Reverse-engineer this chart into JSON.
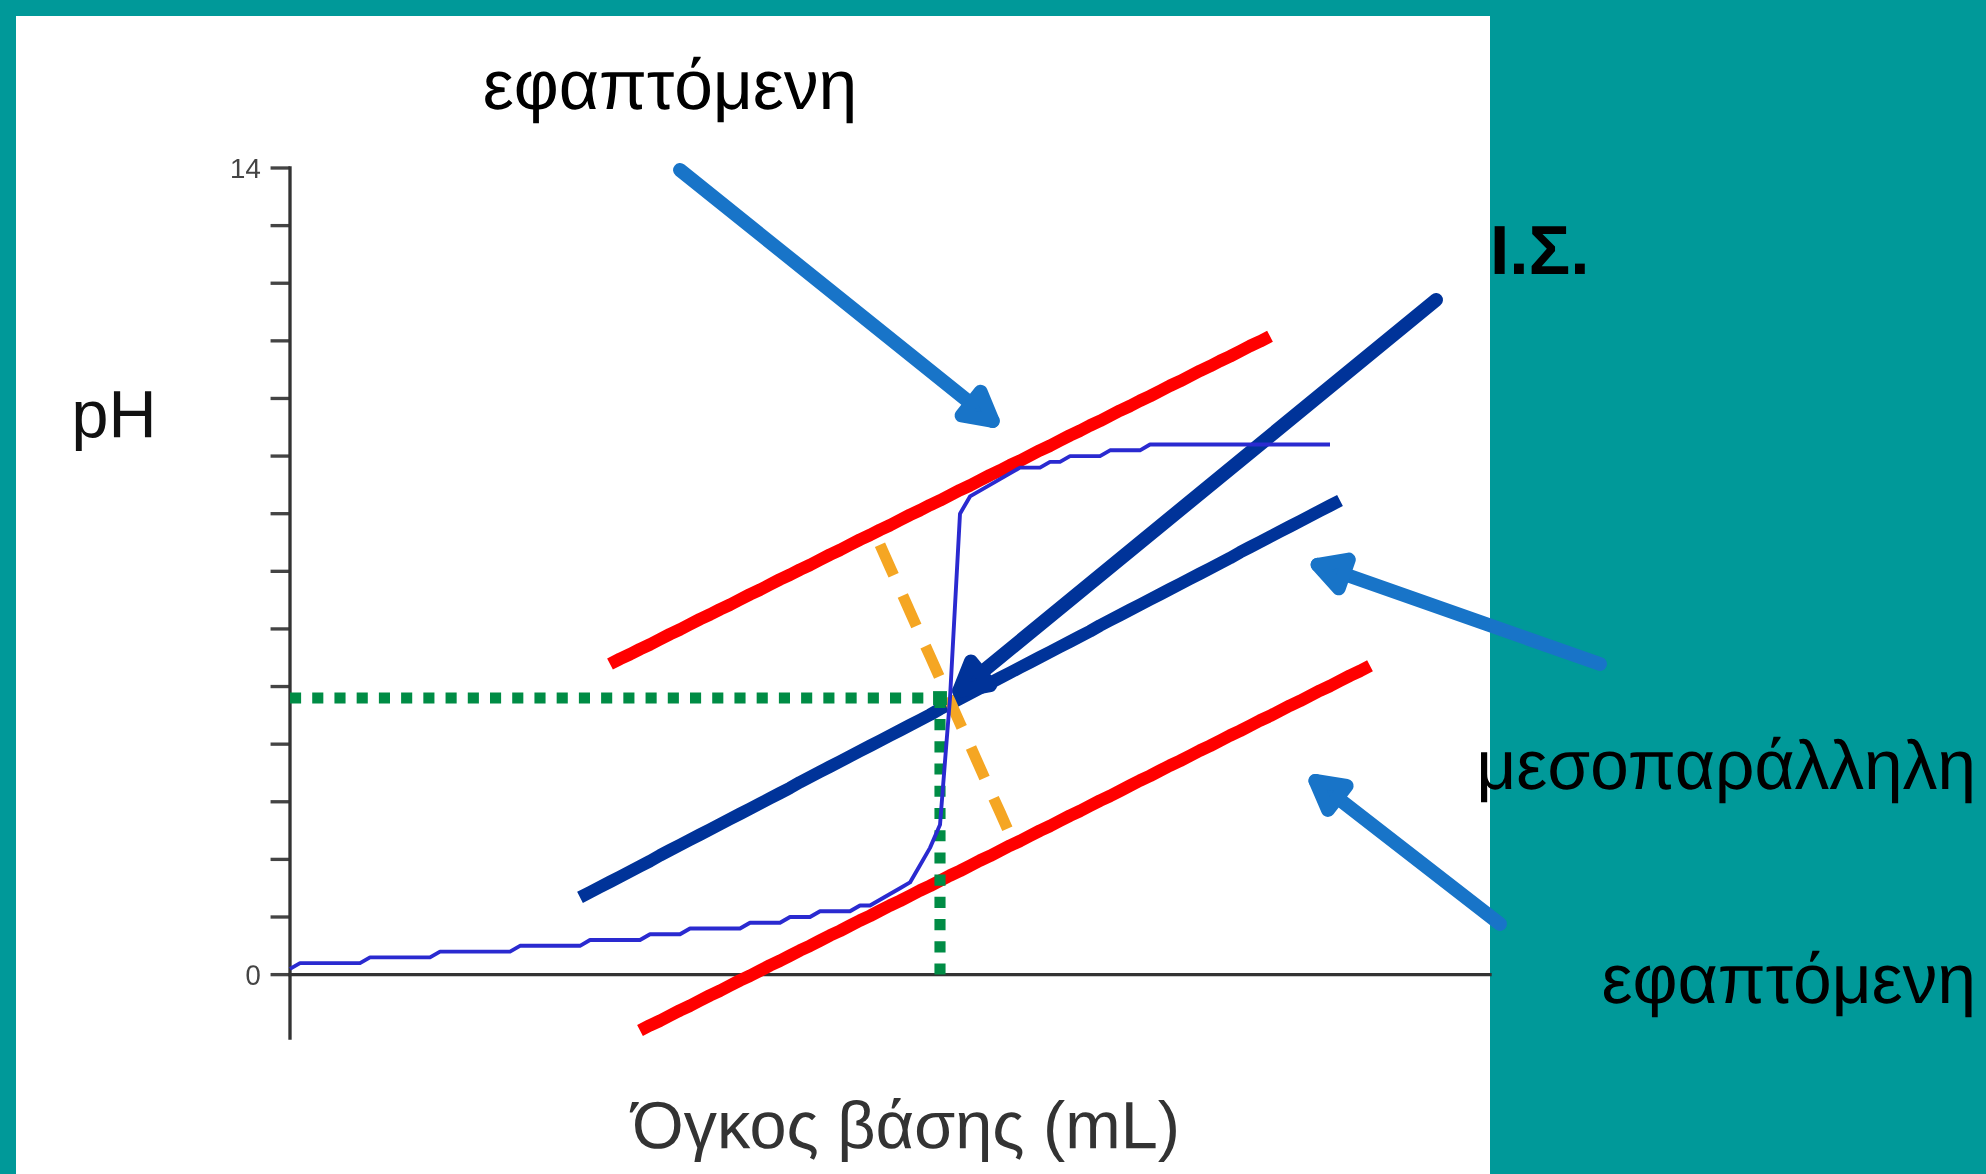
{
  "chart_data": {
    "type": "line",
    "xlabel": "Όγκος βάσης (mL)",
    "ylabel": "pH",
    "categories": [
      null,
      null,
      null,
      null,
      null,
      null,
      null,
      null,
      null,
      null,
      null,
      null,
      null,
      null,
      null,
      null,
      null,
      null,
      null,
      null,
      null,
      null,
      null,
      null,
      null,
      null,
      null,
      null,
      null,
      null,
      null,
      null,
      null,
      null,
      null,
      null,
      null,
      null,
      null,
      null,
      null,
      null,
      null,
      null,
      null,
      null,
      null,
      null,
      null,
      null,
      null,
      null,
      null,
      null,
      null,
      null,
      null,
      null,
      null,
      null,
      null,
      null,
      null,
      null,
      null,
      null,
      null,
      null,
      null,
      null,
      null,
      null,
      null,
      null,
      null,
      null,
      null,
      null,
      null,
      null,
      null,
      null,
      null,
      null,
      null,
      null,
      null,
      null,
      null,
      null,
      null,
      null,
      null,
      null,
      null,
      null,
      null,
      null,
      null,
      null,
      null,
      null,
      null,
      null,
      null,
      null,
      null,
      null,
      null,
      null,
      null,
      null,
      null,
      null,
      null,
      null,
      null,
      null,
      null,
      null,
      null
    ],
    "ylim": [
      -1.1,
      14
    ],
    "yticks": [
      0,
      {
        "value": 1,
        "label": null
      },
      {
        "value": 2,
        "label": null
      },
      {
        "value": 3,
        "label": null
      },
      {
        "value": 4,
        "label": null
      },
      {
        "value": 5,
        "label": null
      },
      {
        "value": 6,
        "label": null
      },
      {
        "value": 7,
        "label": null
      },
      {
        "value": 8,
        "label": null
      },
      {
        "value": 9,
        "label": null
      },
      {
        "value": 10,
        "label": null
      },
      {
        "value": 11,
        "label": null
      },
      {
        "value": 12,
        "label": null
      },
      {
        "value": 13,
        "label": null
      },
      14
    ],
    "tick_labels": "y",
    "legend": false,
    "marker": "none",
    "annotations": [
      "εφαπτόμενη",
      "Ι.Σ.",
      "μεσοπαράλληλη",
      "εφαπτόμενη"
    ],
    "series": [
      {
        "color": "#2a2ad0",
        "line_style": "solid",
        "values": [
          0.1,
          0.2,
          0.2,
          0.2,
          0.2,
          0.2,
          0.2,
          0.2,
          0.3,
          0.3,
          0.3,
          0.3,
          0.3,
          0.3,
          0.3,
          0.4,
          0.4,
          0.4,
          0.4,
          0.4,
          0.4,
          0.4,
          0.4,
          0.5,
          0.5,
          0.5,
          0.5,
          0.5,
          0.5,
          0.5,
          0.6,
          0.6,
          0.6,
          0.6,
          0.6,
          0.6,
          0.7,
          0.7,
          0.7,
          0.7,
          0.8,
          0.8,
          0.8,
          0.8,
          0.8,
          0.8,
          0.9,
          0.9,
          0.9,
          0.9,
          1.0,
          1.0,
          1.0,
          1.1,
          1.1,
          1.1,
          1.1,
          1.2,
          1.2,
          1.3,
          1.4,
          1.5,
          1.6,
          1.9,
          2.2,
          2.6,
          4.8,
          8.0,
          8.3,
          8.4,
          8.5,
          8.6,
          8.7,
          8.8,
          8.8,
          8.8,
          8.9,
          8.9,
          9.0,
          9.0,
          9.0,
          9.0,
          9.1,
          9.1,
          9.1,
          9.1,
          9.2,
          9.2,
          9.2,
          9.2,
          9.2,
          9.2,
          9.2,
          9.2,
          9.2,
          9.2,
          9.2,
          9.2,
          9.2,
          9.2,
          9.2,
          9.2,
          9.2,
          9.2,
          9.2,
          null,
          null,
          null,
          null,
          null,
          null,
          null,
          null,
          null,
          null,
          null,
          null,
          null,
          null,
          null,
          null
        ]
      },
      {
        "color": "#ff0000",
        "line_style": "solid",
        "values": [
          null,
          null,
          null,
          null,
          null,
          null,
          null,
          null,
          null,
          null,
          null,
          null,
          null,
          null,
          null,
          null,
          null,
          null,
          null,
          null,
          null,
          null,
          null,
          null,
          null,
          null,
          null,
          null,
          null,
          null,
          null,
          null,
          5.39,
          5.48,
          5.56,
          5.65,
          5.73,
          5.82,
          5.91,
          5.99,
          6.08,
          6.17,
          6.25,
          6.34,
          6.42,
          6.51,
          6.6,
          6.68,
          6.77,
          6.86,
          6.94,
          7.03,
          7.11,
          7.2,
          7.29,
          7.37,
          7.46,
          7.55,
          7.63,
          7.72,
          7.8,
          7.89,
          7.98,
          8.06,
          8.15,
          8.23,
          8.32,
          8.41,
          8.49,
          8.58,
          8.67,
          8.75,
          8.84,
          8.92,
          9.01,
          9.1,
          9.18,
          9.27,
          9.36,
          9.44,
          9.53,
          9.61,
          9.7,
          9.79,
          9.87,
          9.96,
          10.04,
          10.13,
          10.22,
          10.3,
          10.39,
          10.48,
          10.56,
          10.65,
          10.73,
          10.82,
          10.91,
          10.99,
          11.08,
          null,
          null,
          null,
          null,
          null,
          null,
          null,
          null,
          null,
          null,
          null,
          null,
          null,
          null,
          null,
          null,
          null,
          null,
          null,
          null,
          null,
          null
        ]
      },
      {
        "color": "#ff0000",
        "line_style": "solid",
        "values": [
          null,
          null,
          null,
          null,
          null,
          null,
          null,
          null,
          null,
          null,
          null,
          null,
          null,
          null,
          null,
          null,
          null,
          null,
          null,
          null,
          null,
          null,
          null,
          null,
          null,
          null,
          null,
          null,
          null,
          null,
          null,
          null,
          null,
          null,
          null,
          -0.97,
          -0.88,
          -0.8,
          -0.71,
          -0.62,
          -0.54,
          -0.45,
          -0.36,
          -0.28,
          -0.19,
          -0.1,
          -0.02,
          0.07,
          0.16,
          0.24,
          0.33,
          0.42,
          0.5,
          0.59,
          0.68,
          0.76,
          0.85,
          0.94,
          1.02,
          1.11,
          1.2,
          1.28,
          1.37,
          1.46,
          1.54,
          1.63,
          1.72,
          1.8,
          1.89,
          1.98,
          2.06,
          2.15,
          2.24,
          2.32,
          2.41,
          2.5,
          2.58,
          2.67,
          2.76,
          2.84,
          2.93,
          3.02,
          3.1,
          3.19,
          3.28,
          3.37,
          3.45,
          3.54,
          3.63,
          3.71,
          3.8,
          3.89,
          3.97,
          4.06,
          4.15,
          4.23,
          4.32,
          4.41,
          4.49,
          4.58,
          4.67,
          4.75,
          4.84,
          4.93,
          5.01,
          5.1,
          5.19,
          5.27,
          5.36,
          null,
          null,
          null,
          null,
          null,
          null,
          null,
          null,
          null,
          null,
          null,
          null
        ]
      },
      {
        "color": "#003399",
        "line_style": "solid",
        "values": [
          null,
          null,
          null,
          null,
          null,
          null,
          null,
          null,
          null,
          null,
          null,
          null,
          null,
          null,
          null,
          null,
          null,
          null,
          null,
          null,
          null,
          null,
          null,
          null,
          null,
          null,
          null,
          null,
          null,
          1.34,
          1.43,
          1.52,
          1.61,
          1.7,
          1.79,
          1.88,
          1.97,
          2.07,
          2.16,
          2.25,
          2.34,
          2.43,
          2.52,
          2.61,
          2.7,
          2.79,
          2.88,
          2.97,
          3.06,
          3.15,
          3.24,
          3.34,
          3.43,
          3.52,
          3.61,
          3.7,
          3.79,
          3.88,
          3.97,
          4.06,
          4.15,
          4.24,
          4.33,
          4.42,
          4.51,
          4.61,
          4.7,
          4.79,
          4.88,
          4.97,
          5.06,
          5.15,
          5.24,
          5.33,
          5.42,
          5.51,
          5.6,
          5.69,
          5.78,
          5.87,
          5.96,
          6.06,
          6.15,
          6.24,
          6.33,
          6.42,
          6.51,
          6.6,
          6.69,
          6.78,
          6.87,
          6.96,
          7.05,
          7.14,
          7.23,
          7.33,
          7.42,
          7.51,
          7.6,
          7.69,
          7.78,
          7.87,
          7.96,
          8.05,
          8.14,
          8.23,
          null,
          null,
          null,
          null,
          null,
          null,
          null,
          null,
          null,
          null,
          null,
          null,
          null,
          null,
          null
        ]
      },
      {
        "color": "#f5a623",
        "line_style": "dashed",
        "values": [
          null,
          null,
          null,
          null,
          null,
          null,
          null,
          null,
          null,
          null,
          null,
          null,
          null,
          null,
          null,
          null,
          null,
          null,
          null,
          null,
          null,
          null,
          null,
          null,
          null,
          null,
          null,
          null,
          null,
          null,
          null,
          null,
          null,
          null,
          null,
          null,
          null,
          null,
          null,
          null,
          null,
          null,
          null,
          null,
          null,
          null,
          null,
          null,
          null,
          null,
          null,
          null,
          null,
          null,
          null,
          null,
          null,
          null,
          null,
          7.46,
          7.07,
          6.69,
          6.3,
          5.91,
          5.53,
          5.14,
          4.75,
          4.36,
          3.98,
          3.59,
          3.2,
          2.82,
          2.43,
          null,
          null,
          null,
          null,
          null,
          null,
          null,
          null,
          null,
          null,
          null,
          null,
          null,
          null,
          null,
          null,
          null,
          null,
          null,
          null,
          null,
          null,
          null,
          null,
          null,
          null,
          null,
          null,
          null,
          null,
          null,
          null,
          null,
          null,
          null,
          null,
          null,
          null,
          null,
          null,
          null,
          null,
          null,
          null,
          null,
          null,
          null,
          null
        ]
      },
      {
        "color": "#008c45",
        "line_style": "dotted",
        "values": [
          4.8,
          4.8,
          4.8,
          4.8,
          4.8,
          4.8,
          4.8,
          4.8,
          4.8,
          4.8,
          4.8,
          4.8,
          4.8,
          4.8,
          4.8,
          4.8,
          4.8,
          4.8,
          4.8,
          4.8,
          4.8,
          4.8,
          4.8,
          4.8,
          4.8,
          4.8,
          4.8,
          4.8,
          4.8,
          4.8,
          4.8,
          4.8,
          4.8,
          4.8,
          4.8,
          4.8,
          4.8,
          4.8,
          4.8,
          4.8,
          4.8,
          4.8,
          4.8,
          4.8,
          4.8,
          4.8,
          4.8,
          4.8,
          4.8,
          4.8,
          4.8,
          4.8,
          4.8,
          4.8,
          4.8,
          4.8,
          4.8,
          4.8,
          4.8,
          4.8,
          4.8,
          4.8,
          4.8,
          4.8,
          4.8,
          4.8,
          null,
          null,
          null,
          null,
          null,
          null,
          null,
          null,
          null,
          null,
          null,
          null,
          null,
          null,
          null,
          null,
          null,
          null,
          null,
          null,
          null,
          null,
          null,
          null,
          null,
          null,
          null,
          null,
          null,
          null,
          null,
          null,
          null,
          null,
          null,
          null,
          null,
          null,
          null,
          null,
          null,
          null,
          null,
          null,
          null,
          null,
          null,
          null,
          null,
          null,
          null,
          null,
          null,
          null,
          null
        ]
      },
      {
        "type": "lollipop",
        "marker": "square",
        "color": "#008c45",
        "line_style": "dotted",
        "values": [
          null,
          null,
          null,
          null,
          null,
          null,
          null,
          null,
          null,
          null,
          null,
          null,
          null,
          null,
          null,
          null,
          null,
          null,
          null,
          null,
          null,
          null,
          null,
          null,
          null,
          null,
          null,
          null,
          null,
          null,
          null,
          null,
          null,
          null,
          null,
          null,
          null,
          null,
          null,
          null,
          null,
          null,
          null,
          null,
          null,
          null,
          null,
          null,
          null,
          null,
          null,
          null,
          null,
          null,
          null,
          null,
          null,
          null,
          null,
          null,
          null,
          null,
          null,
          null,
          null,
          4.8,
          null,
          null,
          null,
          null,
          null,
          null,
          null,
          null,
          null,
          null,
          null,
          null,
          null,
          null,
          null,
          null,
          null,
          null,
          null,
          null,
          null,
          null,
          null,
          null,
          null,
          null,
          null,
          null,
          null,
          null,
          null,
          null,
          null,
          null,
          null,
          null,
          null,
          null,
          null,
          null,
          null,
          null,
          null,
          null,
          null,
          null,
          null,
          null,
          null,
          null,
          null,
          null,
          null,
          null,
          null
        ]
      }
    ]
  }
}
